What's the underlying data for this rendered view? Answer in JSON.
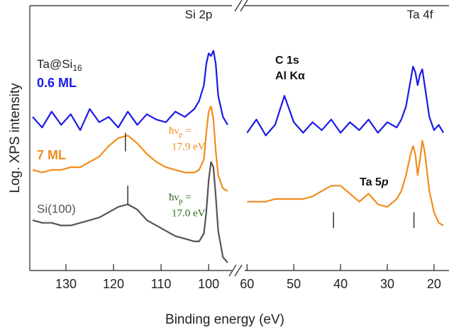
{
  "chart_data": {
    "type": "line",
    "xlabel": "Binding energy (eV)",
    "ylabel": "Log. XPS intensity",
    "ylim": [
      0,
      100
    ],
    "panels": [
      {
        "xlim": [
          137.6,
          95.7
        ],
        "xticks": [
          130,
          120,
          110,
          100
        ],
        "x": [
          137,
          135,
          133,
          131,
          129,
          127,
          125,
          123,
          121,
          119,
          117,
          115,
          113,
          111,
          109,
          107,
          105,
          103,
          102,
          101,
          100.5,
          100,
          99.5,
          99,
          98.5,
          98,
          97,
          96
        ],
        "series": [
          {
            "name": "0.6 ML",
            "color": "#1a1ae6",
            "values": [
              58,
              54,
              60,
              55,
              59,
              53,
              61,
              56,
              58,
              54,
              60,
              55,
              59,
              57,
              56,
              60,
              58,
              61,
              64,
              70,
              78,
              82,
              81,
              83,
              78,
              66,
              58,
              55
            ]
          },
          {
            "name": "7 ML",
            "color": "#f28c1c",
            "values": [
              38,
              37,
              38,
              38,
              39,
              39,
              41,
              43,
              47,
              50,
              51,
              48,
              44,
              41,
              39,
              38,
              37,
              37,
              38,
              42,
              52,
              60,
              62,
              57,
              45,
              36,
              31,
              30
            ]
          },
          {
            "name": "Si(100)",
            "color": "#555555",
            "values": [
              19,
              18,
              18,
              17,
              17,
              18,
              19,
              20,
              22,
              24,
              25,
              23,
              19,
              17,
              15,
              13,
              12,
              11,
              11,
              14,
              22,
              34,
              41,
              39,
              28,
              15,
              5,
              3
            ]
          }
        ],
        "markers": [
          {
            "x": 117.5,
            "y": [
              45,
              52
            ],
            "color": "#333333"
          },
          {
            "x": 117,
            "y": [
              25,
              32
            ],
            "color": "#333333"
          }
        ],
        "annotations": [
          {
            "text": "Si 2p",
            "color": "#222222"
          },
          {
            "text": "Ta@Si",
            "sub": "16",
            "color": "#222222"
          },
          {
            "text": "ħν",
            "sub": "p",
            "tail": " =",
            "line2": "17.9 eV",
            "color": "#f28c1c"
          },
          {
            "text": "ħν",
            "sub": "p",
            "tail": " =",
            "line2": "17.0 eV",
            "color": "#2a6a1a"
          }
        ]
      },
      {
        "xlim": [
          60.5,
          16.8
        ],
        "xticks": [
          60,
          50,
          40,
          30,
          20
        ],
        "x": [
          60,
          58,
          56,
          54,
          52,
          50,
          48,
          46,
          44,
          42,
          40,
          38,
          36,
          34,
          32,
          30,
          28,
          27,
          26,
          25,
          24.5,
          24,
          23.5,
          23,
          22.5,
          22,
          21,
          20,
          19,
          18
        ],
        "series": [
          {
            "name": "0.6 ML",
            "color": "#1a1ae6",
            "values": [
              52,
              57,
              51,
              55,
              66,
              56,
              52,
              56,
              53,
              57,
              52,
              56,
              53,
              57,
              52,
              56,
              54,
              57,
              62,
              72,
              77,
              75,
              70,
              74,
              76,
              70,
              58,
              53,
              55,
              52
            ]
          },
          {
            "name": "7 ML",
            "color": "#f28c1c",
            "values": [
              26,
              26,
              26,
              27,
              27,
              27,
              27,
              28,
              30,
              32,
              32,
              29,
              26,
              29,
              25,
              24,
              27,
              30,
              36,
              44,
              47,
              44,
              36,
              42,
              49,
              45,
              30,
              22,
              18,
              17
            ]
          }
        ],
        "markers": [
          {
            "x": 41.5,
            "y": [
              16,
              22
            ],
            "color": "#333333"
          },
          {
            "x": 24.3,
            "y": [
              16,
              22
            ],
            "color": "#333333"
          }
        ],
        "annotations": [
          {
            "text": "Ta 4f",
            "color": "#222222"
          },
          {
            "text": "C 1s",
            "line2": "Al Kα",
            "color": "#111111"
          },
          {
            "text": "Ta 5",
            "tail": "p",
            "color": "#111111"
          }
        ]
      }
    ]
  }
}
